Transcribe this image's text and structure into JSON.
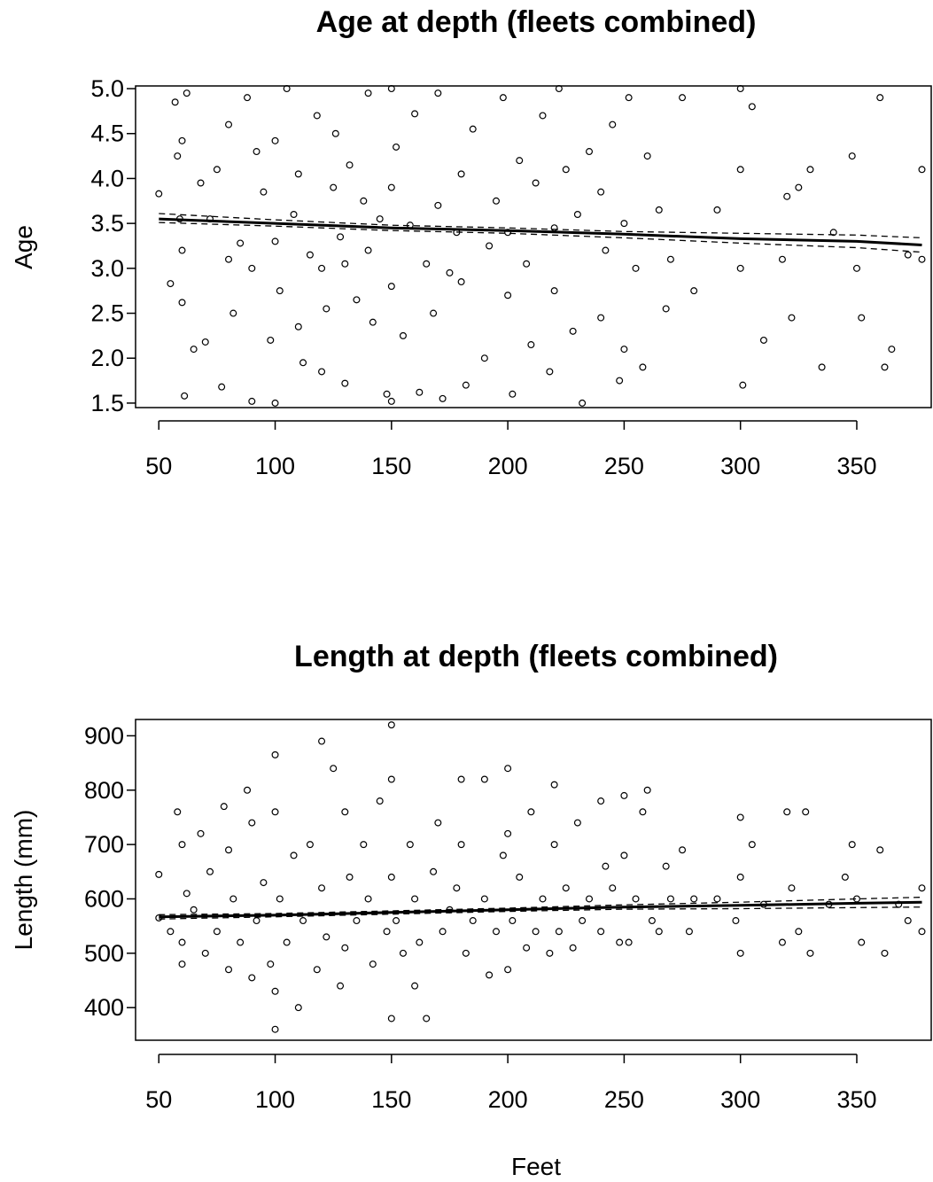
{
  "chart_data": [
    {
      "type": "scatter",
      "title": "Age at depth (fleets combined)",
      "xlabel": "",
      "ylabel": "Age",
      "xlim": [
        40,
        382
      ],
      "ylim": [
        1.45,
        5.03
      ],
      "x_ticks": [
        "50",
        "100",
        "150",
        "200",
        "250",
        "300",
        "350"
      ],
      "y_ticks": [
        "1.5",
        "2.0",
        "2.5",
        "3.0",
        "3.5",
        "4.0",
        "4.5",
        "5.0"
      ],
      "grid": false,
      "points": {
        "x": [
          50,
          55,
          57,
          58,
          59,
          60,
          60,
          60,
          61,
          62,
          65,
          68,
          70,
          72,
          75,
          77,
          80,
          80,
          82,
          85,
          88,
          90,
          90,
          92,
          95,
          98,
          100,
          100,
          100,
          102,
          105,
          108,
          110,
          110,
          112,
          115,
          118,
          120,
          120,
          122,
          125,
          126,
          128,
          130,
          130,
          132,
          135,
          138,
          140,
          140,
          142,
          145,
          148,
          150,
          150,
          150,
          150,
          152,
          155,
          158,
          160,
          162,
          165,
          168,
          170,
          170,
          172,
          175,
          178,
          180,
          180,
          182,
          185,
          190,
          192,
          195,
          198,
          200,
          200,
          202,
          205,
          208,
          210,
          212,
          215,
          218,
          220,
          220,
          222,
          225,
          228,
          230,
          232,
          235,
          240,
          240,
          242,
          245,
          248,
          250,
          250,
          252,
          255,
          258,
          260,
          265,
          268,
          270,
          275,
          280,
          290,
          300,
          300,
          300,
          301,
          305,
          310,
          318,
          320,
          322,
          325,
          330,
          335,
          340,
          348,
          350,
          352,
          360,
          362,
          365,
          372,
          378,
          378
        ],
        "y": [
          3.83,
          2.83,
          4.85,
          4.25,
          3.55,
          4.42,
          2.62,
          3.2,
          1.58,
          4.95,
          2.1,
          3.95,
          2.18,
          3.55,
          4.1,
          1.68,
          3.1,
          4.6,
          2.5,
          3.28,
          4.9,
          3.0,
          1.52,
          4.3,
          3.85,
          2.2,
          4.42,
          3.3,
          1.5,
          2.75,
          5.0,
          3.6,
          4.05,
          2.35,
          1.95,
          3.15,
          4.7,
          3.0,
          1.85,
          2.55,
          3.9,
          4.5,
          3.35,
          3.05,
          1.72,
          4.15,
          2.65,
          3.75,
          4.95,
          3.2,
          2.4,
          3.55,
          1.6,
          5.0,
          3.9,
          2.8,
          1.52,
          4.35,
          2.25,
          3.48,
          4.72,
          1.62,
          3.05,
          2.5,
          3.7,
          4.95,
          1.55,
          2.95,
          3.4,
          4.05,
          2.85,
          1.7,
          4.55,
          2.0,
          3.25,
          3.75,
          4.9,
          3.4,
          2.7,
          1.6,
          4.2,
          3.05,
          2.15,
          3.95,
          4.7,
          1.85,
          3.45,
          2.75,
          5.0,
          4.1,
          2.3,
          3.6,
          1.5,
          4.3,
          3.85,
          2.45,
          3.2,
          4.6,
          1.75,
          3.5,
          2.1,
          4.9,
          3.0,
          1.9,
          4.25,
          3.65,
          2.55,
          3.1,
          4.9,
          2.75,
          3.65,
          5.0,
          4.1,
          3.0,
          1.7,
          4.8,
          2.2,
          3.1,
          3.8,
          2.45,
          3.9,
          4.1,
          1.9,
          3.4,
          4.25,
          3.0,
          2.45,
          4.9,
          1.9,
          2.1,
          3.15,
          4.1,
          3.1
        ],
        "count": 134
      },
      "series": [
        {
          "name": "",
          "style": "solid",
          "x": [
            50,
            100,
            150,
            200,
            250,
            300,
            350,
            378
          ],
          "y": [
            3.55,
            3.5,
            3.45,
            3.42,
            3.38,
            3.33,
            3.3,
            3.26
          ]
        },
        {
          "name": "",
          "style": "dashed",
          "x": [
            50,
            100,
            150,
            200,
            250,
            300,
            350,
            378
          ],
          "y": [
            3.61,
            3.54,
            3.48,
            3.45,
            3.41,
            3.39,
            3.37,
            3.34
          ]
        },
        {
          "name": "",
          "style": "dashed",
          "x": [
            50,
            100,
            150,
            200,
            250,
            300,
            350,
            378
          ],
          "y": [
            3.51,
            3.47,
            3.42,
            3.39,
            3.34,
            3.28,
            3.23,
            3.18
          ]
        }
      ]
    },
    {
      "type": "scatter",
      "title": "Length at depth (fleets combined)",
      "xlabel": "Feet",
      "ylabel": "Length (mm)",
      "xlim": [
        40,
        382
      ],
      "ylim": [
        340,
        930
      ],
      "x_ticks": [
        "50",
        "100",
        "150",
        "200",
        "250",
        "300",
        "350"
      ],
      "y_ticks": [
        "400",
        "500",
        "600",
        "700",
        "800",
        "900"
      ],
      "grid": false,
      "points": {
        "x": [
          50,
          50,
          55,
          58,
          60,
          60,
          60,
          62,
          65,
          68,
          70,
          72,
          75,
          78,
          80,
          80,
          82,
          85,
          88,
          90,
          90,
          92,
          95,
          98,
          100,
          100,
          100,
          100,
          102,
          105,
          108,
          110,
          112,
          115,
          118,
          120,
          120,
          122,
          125,
          128,
          130,
          130,
          132,
          135,
          138,
          140,
          142,
          145,
          148,
          150,
          150,
          150,
          150,
          152,
          155,
          158,
          160,
          160,
          162,
          165,
          168,
          170,
          172,
          175,
          178,
          180,
          180,
          182,
          185,
          190,
          190,
          192,
          195,
          198,
          200,
          200,
          200,
          202,
          205,
          208,
          210,
          212,
          215,
          218,
          220,
          220,
          222,
          225,
          228,
          230,
          232,
          235,
          240,
          240,
          242,
          245,
          248,
          250,
          250,
          252,
          255,
          258,
          260,
          262,
          265,
          268,
          270,
          275,
          278,
          280,
          290,
          298,
          300,
          300,
          300,
          305,
          310,
          318,
          320,
          322,
          325,
          328,
          330,
          338,
          345,
          348,
          350,
          352,
          360,
          362,
          368,
          372,
          378,
          378
        ],
        "y": [
          645,
          565,
          540,
          760,
          700,
          520,
          480,
          610,
          580,
          720,
          500,
          650,
          540,
          770,
          690,
          470,
          600,
          520,
          800,
          740,
          455,
          560,
          630,
          480,
          865,
          760,
          360,
          430,
          600,
          520,
          680,
          400,
          560,
          700,
          470,
          890,
          620,
          530,
          840,
          440,
          760,
          510,
          640,
          560,
          700,
          600,
          480,
          780,
          540,
          920,
          820,
          640,
          380,
          560,
          500,
          700,
          600,
          440,
          520,
          380,
          650,
          740,
          540,
          580,
          620,
          820,
          700,
          500,
          560,
          600,
          820,
          460,
          540,
          680,
          840,
          720,
          470,
          560,
          640,
          510,
          760,
          540,
          600,
          500,
          810,
          700,
          540,
          620,
          510,
          740,
          560,
          600,
          780,
          540,
          660,
          620,
          520,
          790,
          680,
          520,
          600,
          760,
          800,
          560,
          540,
          660,
          600,
          690,
          540,
          600,
          600,
          560,
          750,
          640,
          500,
          700,
          590,
          520,
          760,
          620,
          540,
          760,
          500,
          590,
          640,
          700,
          600,
          520,
          690,
          500,
          590,
          560,
          620,
          540
        ],
        "count": 136
      },
      "series": [
        {
          "name": "",
          "style": "solid",
          "x": [
            50,
            100,
            150,
            200,
            250,
            300,
            350,
            378
          ],
          "y": [
            567,
            570,
            575,
            580,
            585,
            588,
            592,
            594
          ]
        },
        {
          "name": "",
          "style": "dashed",
          "x": [
            50,
            100,
            150,
            200,
            250,
            300,
            350,
            378
          ],
          "y": [
            571,
            573,
            578,
            583,
            589,
            594,
            600,
            603
          ]
        },
        {
          "name": "",
          "style": "dashed",
          "x": [
            50,
            100,
            150,
            200,
            250,
            300,
            350,
            378
          ],
          "y": [
            563,
            567,
            572,
            577,
            581,
            582,
            584,
            585
          ]
        }
      ]
    }
  ]
}
